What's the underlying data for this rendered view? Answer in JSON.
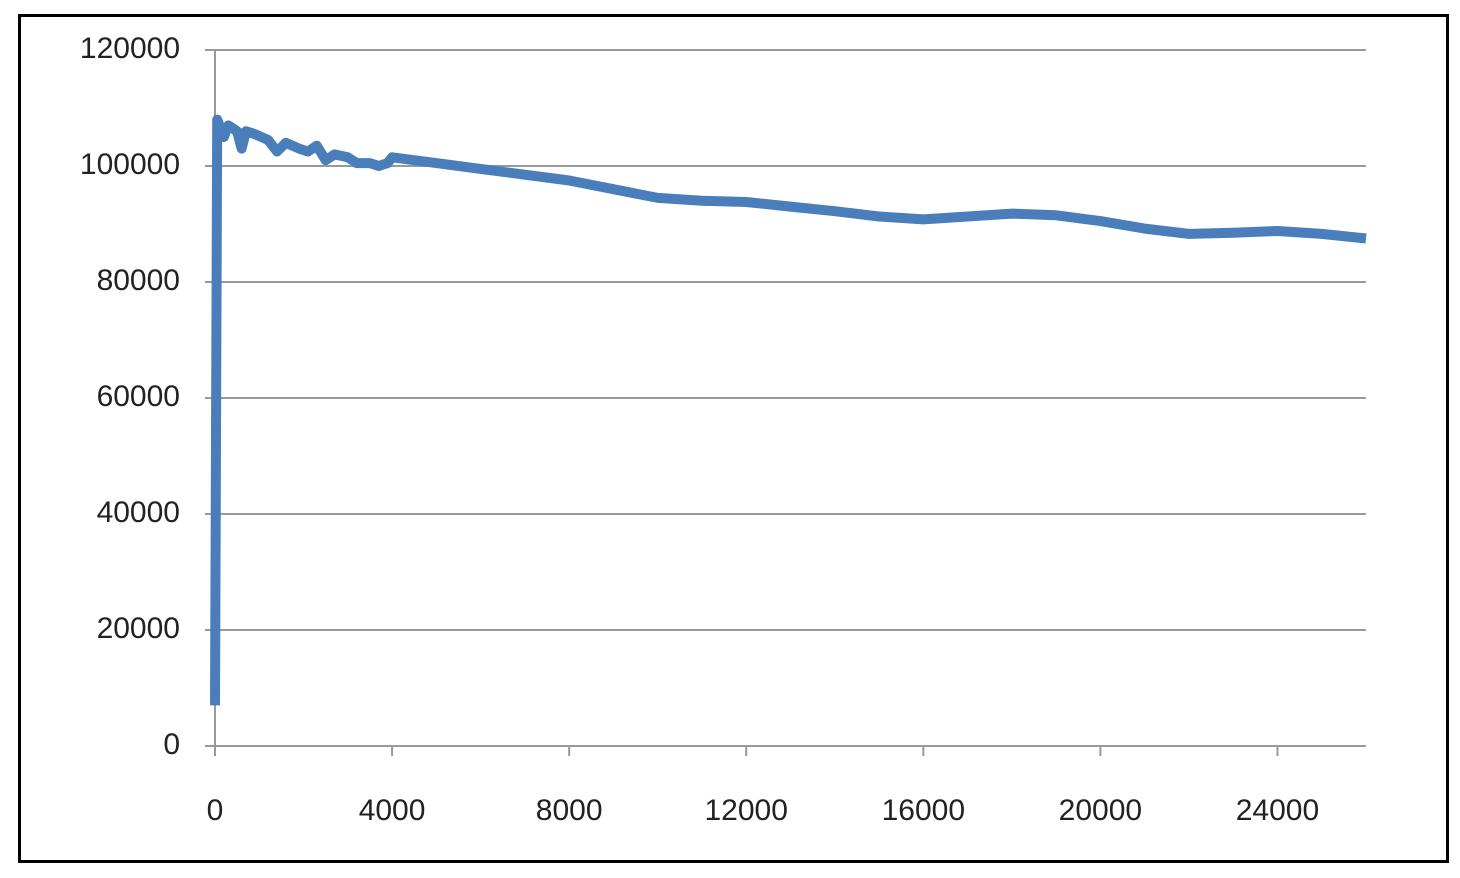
{
  "chart_data": {
    "type": "line",
    "x": [
      0,
      50,
      200,
      300,
      500,
      600,
      700,
      900,
      1200,
      1400,
      1600,
      1900,
      2100,
      2300,
      2500,
      2700,
      3000,
      3200,
      3500,
      3700,
      3900,
      4000,
      5000,
      6000,
      7000,
      8000,
      9000,
      10000,
      11000,
      12000,
      13000,
      14000,
      15000,
      16000,
      17000,
      18000,
      19000,
      20000,
      21000,
      22000,
      23000,
      24000,
      25000,
      26000
    ],
    "values": [
      7000,
      108000,
      105000,
      107000,
      106000,
      103000,
      106000,
      105500,
      104500,
      102500,
      104000,
      103000,
      102500,
      103500,
      101000,
      102000,
      101500,
      100500,
      100500,
      100000,
      100500,
      101500,
      100500,
      99500,
      98500,
      97500,
      96000,
      94500,
      94000,
      93800,
      93000,
      92200,
      91300,
      90800,
      91300,
      91800,
      91500,
      90500,
      89200,
      88300,
      88500,
      88800,
      88300,
      87500
    ],
    "color": "#4a7ebb",
    "xlim": [
      0,
      26000
    ],
    "xticks": [
      0,
      4000,
      8000,
      12000,
      16000,
      20000,
      24000
    ],
    "ylim": [
      0,
      120000
    ],
    "yticks": [
      0,
      20000,
      40000,
      60000,
      80000,
      100000,
      120000
    ],
    "grid": true
  }
}
